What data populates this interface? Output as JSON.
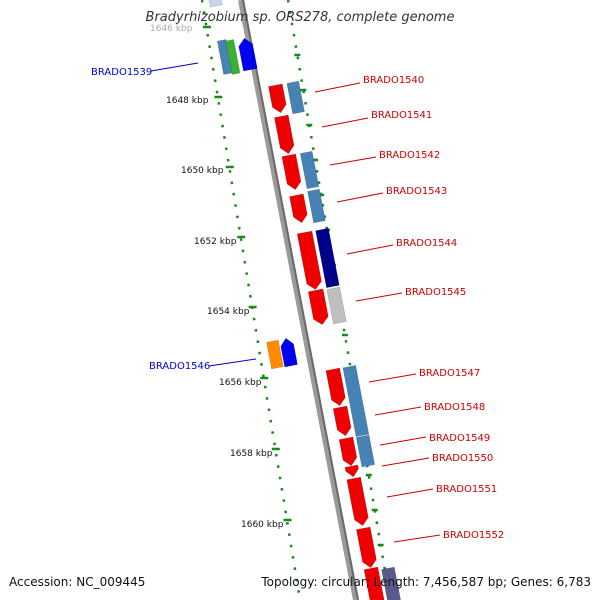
{
  "title": "Bradyrhizobium sp. ORS278, complete genome",
  "accession_text": "Accession: NC_009445",
  "topology_text": "Topology: circular; Length: 7,456,587 bp; Genes: 6,783",
  "colors": {
    "forward_label": "#cc0000",
    "reverse_label": "#0000cc",
    "backbone": "#808080",
    "tick": "#1a8a1a"
  },
  "kbp_ticks": [
    "1646 kbp",
    "1648 kbp",
    "1650 kbp",
    "1652 kbp",
    "1654 kbp",
    "1656 kbp",
    "1658 kbp",
    "1660 kbp"
  ],
  "gene_labels": [
    {
      "name": "BRADO1539",
      "strand": "reverse"
    },
    {
      "name": "BRADO1540",
      "strand": "forward"
    },
    {
      "name": "BRADO1541",
      "strand": "forward"
    },
    {
      "name": "BRADO1542",
      "strand": "forward"
    },
    {
      "name": "BRADO1543",
      "strand": "forward"
    },
    {
      "name": "BRADO1544",
      "strand": "forward"
    },
    {
      "name": "BRADO1545",
      "strand": "forward"
    },
    {
      "name": "BRADO1546",
      "strand": "reverse"
    },
    {
      "name": "BRADO1547",
      "strand": "forward"
    },
    {
      "name": "BRADO1548",
      "strand": "forward"
    },
    {
      "name": "BRADO1549",
      "strand": "forward"
    },
    {
      "name": "BRADO1550",
      "strand": "forward"
    },
    {
      "name": "BRADO1551",
      "strand": "forward"
    },
    {
      "name": "BRADO1552",
      "strand": "forward"
    }
  ]
}
